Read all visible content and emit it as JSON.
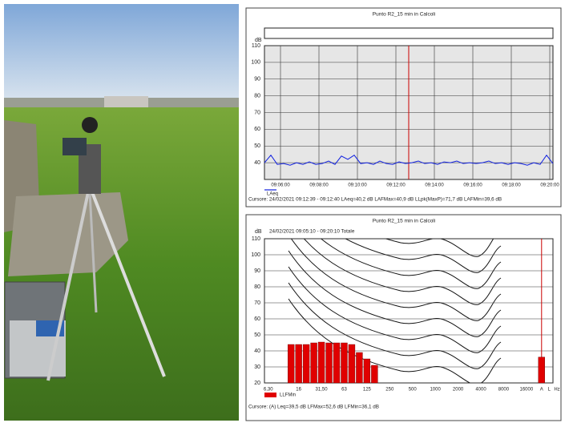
{
  "chart_data": [
    {
      "type": "line",
      "title": "Punto R2_15 min in Calcoli",
      "y_label": "dB",
      "x": [
        "09:05:10",
        "09:05:30",
        "09:05:50",
        "09:06:10",
        "09:06:30",
        "09:06:50",
        "09:07:10",
        "09:07:30",
        "09:07:50",
        "09:08:10",
        "09:08:30",
        "09:08:50",
        "09:09:10",
        "09:09:30",
        "09:09:50",
        "09:10:10",
        "09:10:30",
        "09:10:50",
        "09:11:10",
        "09:11:30",
        "09:11:50",
        "09:12:10",
        "09:12:30",
        "09:12:50",
        "09:13:10",
        "09:13:30",
        "09:13:50",
        "09:14:10",
        "09:14:30",
        "09:14:50",
        "09:15:10",
        "09:15:30",
        "09:15:50",
        "09:16:10",
        "09:16:30",
        "09:16:50",
        "09:17:10",
        "09:17:30",
        "09:17:50",
        "09:18:10",
        "09:18:30",
        "09:18:50",
        "09:19:10",
        "09:19:30",
        "09:19:50",
        "09:20:10"
      ],
      "series": [
        {
          "name": "LAeq",
          "color": "#1020e0",
          "values": [
            40,
            44.5,
            39,
            39.5,
            38.5,
            40,
            39,
            40.5,
            39,
            39.5,
            41,
            39,
            44,
            42,
            44.5,
            39.5,
            40,
            39,
            41,
            39.5,
            39,
            40.5,
            39.5,
            40,
            41,
            39.5,
            40,
            39,
            40.5,
            40,
            41,
            39.5,
            40,
            39.5,
            40,
            41,
            39.5,
            40,
            39,
            40,
            39.5,
            38.5,
            40,
            39,
            44.5,
            39.5
          ]
        }
      ],
      "xlim": [
        "09:05:10",
        "09:20:10"
      ],
      "xticks": [
        "09:06:00",
        "09:08:00",
        "09:10:00",
        "09:12:00",
        "09:14:00",
        "09:16:00",
        "09:18:00",
        "09:20:00"
      ],
      "ylim": [
        30,
        110
      ],
      "yticks": [
        40,
        50,
        60,
        70,
        80,
        90,
        100,
        110
      ],
      "grid": true,
      "cursor": "09:12:40",
      "cursor_color": "#cc0000",
      "status": "Cursore: 24/02/2021 09:12:39 - 09:12:40  LAeq=40,2 dB  LAFMax=40,9 dB  LLpk(MaxP)=71,7 dB  LAFMin=39,6 dB"
    },
    {
      "type": "bar",
      "title": "Punto R2_15 min in Calcoli",
      "subtitle": "24/02/2021 09:05:10 - 09:20:10  Totale",
      "y_label": "dB",
      "x_unit": "Hz",
      "categories": [
        "6,30",
        null,
        null,
        null,
        "16",
        null,
        null,
        "31,50",
        null,
        null,
        "63",
        null,
        null,
        "125",
        null,
        null,
        "250",
        null,
        null,
        "500",
        null,
        null,
        "1000",
        null,
        null,
        "2000",
        null,
        null,
        "4000",
        null,
        null,
        "8000",
        null,
        null,
        "16000",
        null,
        "A",
        "L"
      ],
      "series": [
        {
          "name": "LLFMin",
          "color": "#e00000",
          "values": [
            null,
            null,
            null,
            44,
            44,
            44,
            45,
            45.5,
            45,
            45,
            45,
            44,
            39,
            35,
            31,
            null,
            null,
            null,
            null,
            null,
            null,
            null,
            null,
            null,
            null,
            null,
            null,
            null,
            null,
            null,
            null,
            null,
            null,
            null,
            null,
            null,
            36.1,
            null
          ]
        }
      ],
      "ylim": [
        20,
        110
      ],
      "yticks": [
        20,
        30,
        40,
        50,
        60,
        70,
        80,
        90,
        100,
        110
      ],
      "grid": true,
      "cursor": "A",
      "cursor_color": "#cc0000",
      "status": "Cursore: (A) Leq=39,5 dB  LFMax=52,6 dB  LFMin=36,1 dB"
    }
  ]
}
